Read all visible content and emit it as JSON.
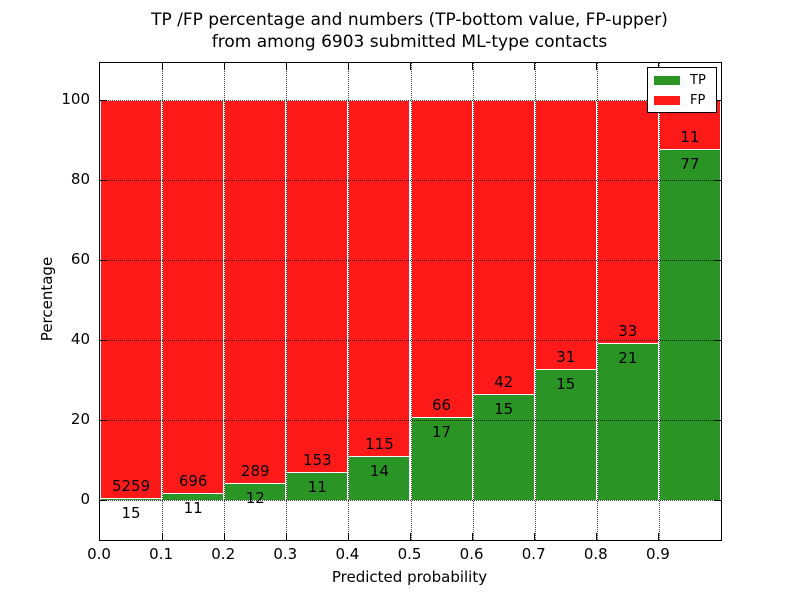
{
  "chart_data": {
    "type": "bar",
    "stacked": true,
    "normalized_to_percent": true,
    "title": "TP /FP percentage and numbers (TP-bottom value, FP-upper)\nfrom among 6903 submitted ML-type contacts",
    "title_line1": "TP /FP percentage and numbers (TP-bottom value, FP-upper)",
    "title_line2": "from among 6903 submitted ML-type contacts",
    "xlabel": "Predicted probability",
    "ylabel": "Percentage",
    "total_contacts": 6903,
    "x_tick_labels": [
      "0.0",
      "0.1",
      "0.2",
      "0.3",
      "0.4",
      "0.5",
      "0.6",
      "0.7",
      "0.8",
      "0.9"
    ],
    "y_ticks": [
      0,
      20,
      40,
      60,
      80,
      100
    ],
    "xlim": [
      0.0,
      1.0
    ],
    "ylim": [
      -10,
      109
    ],
    "grid": "dotted",
    "bin_width": 0.1,
    "categories": [
      "0.0-0.1",
      "0.1-0.2",
      "0.2-0.3",
      "0.3-0.4",
      "0.4-0.5",
      "0.5-0.6",
      "0.6-0.7",
      "0.7-0.8",
      "0.8-0.9",
      "0.9-1.0"
    ],
    "series": [
      {
        "name": "TP",
        "color": "#2a9425",
        "values": [
          15,
          11,
          12,
          11,
          14,
          17,
          15,
          15,
          21,
          77
        ]
      },
      {
        "name": "FP",
        "color": "#ff1a1a",
        "values": [
          5259,
          696,
          289,
          153,
          115,
          66,
          42,
          31,
          33,
          11
        ]
      }
    ],
    "legend": {
      "position": "upper right",
      "entries": [
        {
          "label": "TP",
          "color": "#2a9425"
        },
        {
          "label": "FP",
          "color": "#ff1a1a"
        }
      ]
    }
  }
}
